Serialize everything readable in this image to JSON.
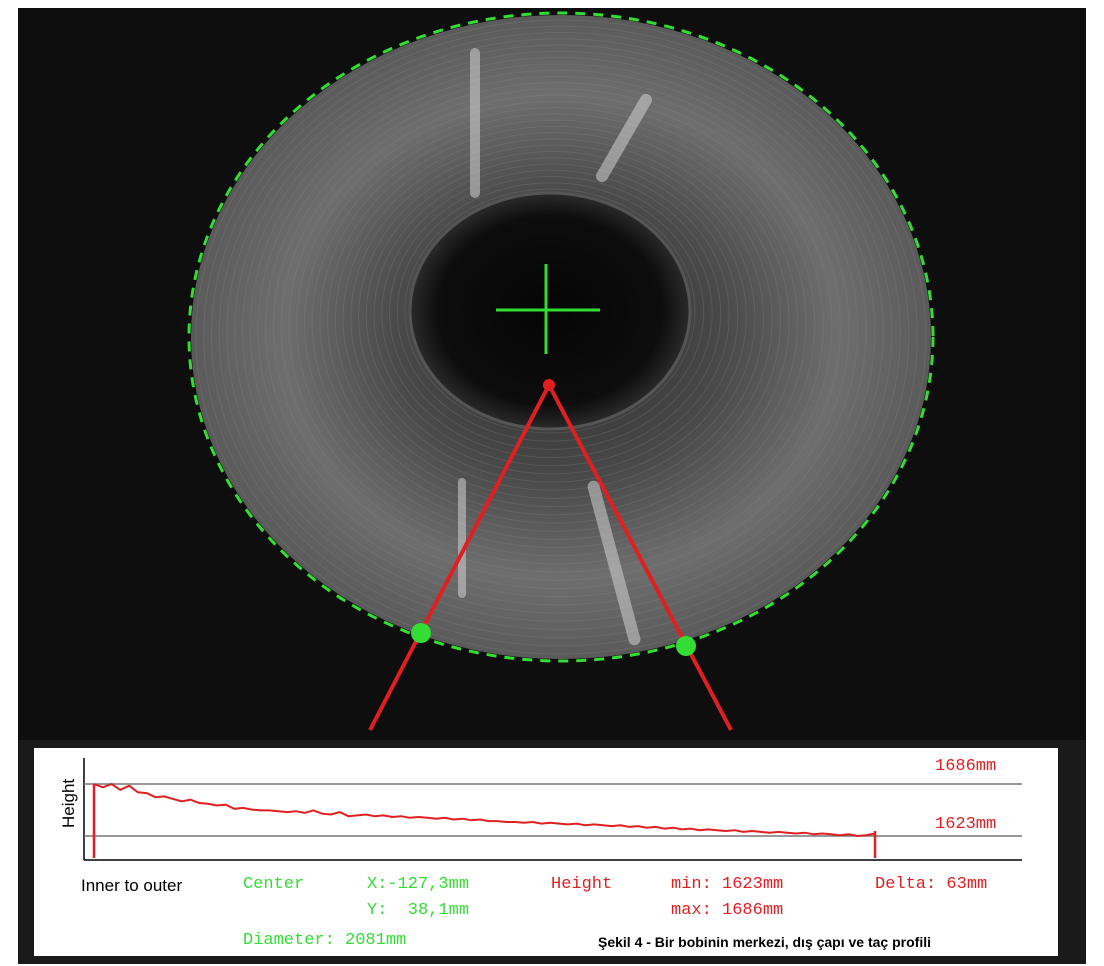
{
  "colors": {
    "overlay_green": "#33dd33",
    "overlay_red": "#e02020",
    "background": "#1a1a1a",
    "coil": "#6a6a6a"
  },
  "icons": {
    "center_marker": "crosshair-icon"
  },
  "profile": {
    "y_axis_label": "Height",
    "x_axis_label": "Inner to outer",
    "max_label": "1686mm",
    "min_label": "1623mm",
    "ylim": [
      1610,
      1700
    ],
    "points": [
      1686,
      1682,
      1686,
      1679,
      1684,
      1676,
      1675,
      1670,
      1671,
      1668,
      1665,
      1667,
      1663,
      1662,
      1660,
      1661,
      1656,
      1657,
      1655,
      1654,
      1654,
      1653,
      1652,
      1653,
      1651,
      1654,
      1650,
      1649,
      1652,
      1647,
      1648,
      1649,
      1647,
      1648,
      1646,
      1647,
      1645,
      1646,
      1645,
      1644,
      1645,
      1643,
      1644,
      1642,
      1643,
      1641,
      1641,
      1640,
      1640,
      1639,
      1640,
      1638,
      1639,
      1638,
      1637,
      1638,
      1636,
      1637,
      1636,
      1635,
      1636,
      1634,
      1635,
      1633,
      1634,
      1632,
      1633,
      1631,
      1632,
      1630,
      1631,
      1630,
      1629,
      1630,
      1628,
      1629,
      1628,
      1627,
      1628,
      1627,
      1626,
      1627,
      1625,
      1626,
      1625,
      1624,
      1625,
      1623,
      1624,
      1626
    ]
  },
  "readout": {
    "center_label": "Center",
    "x_value": "X:-127,3mm",
    "y_value": "Y:  38,1mm",
    "height_label": "Height",
    "min_value": "min: 1623mm",
    "max_value": "max: 1686mm",
    "delta_value": "Delta: 63mm",
    "diameter_value": "Diameter: 2081mm"
  },
  "caption": "Şekil 4 - Bir bobinin merkezi, dış çapı ve taç profili"
}
